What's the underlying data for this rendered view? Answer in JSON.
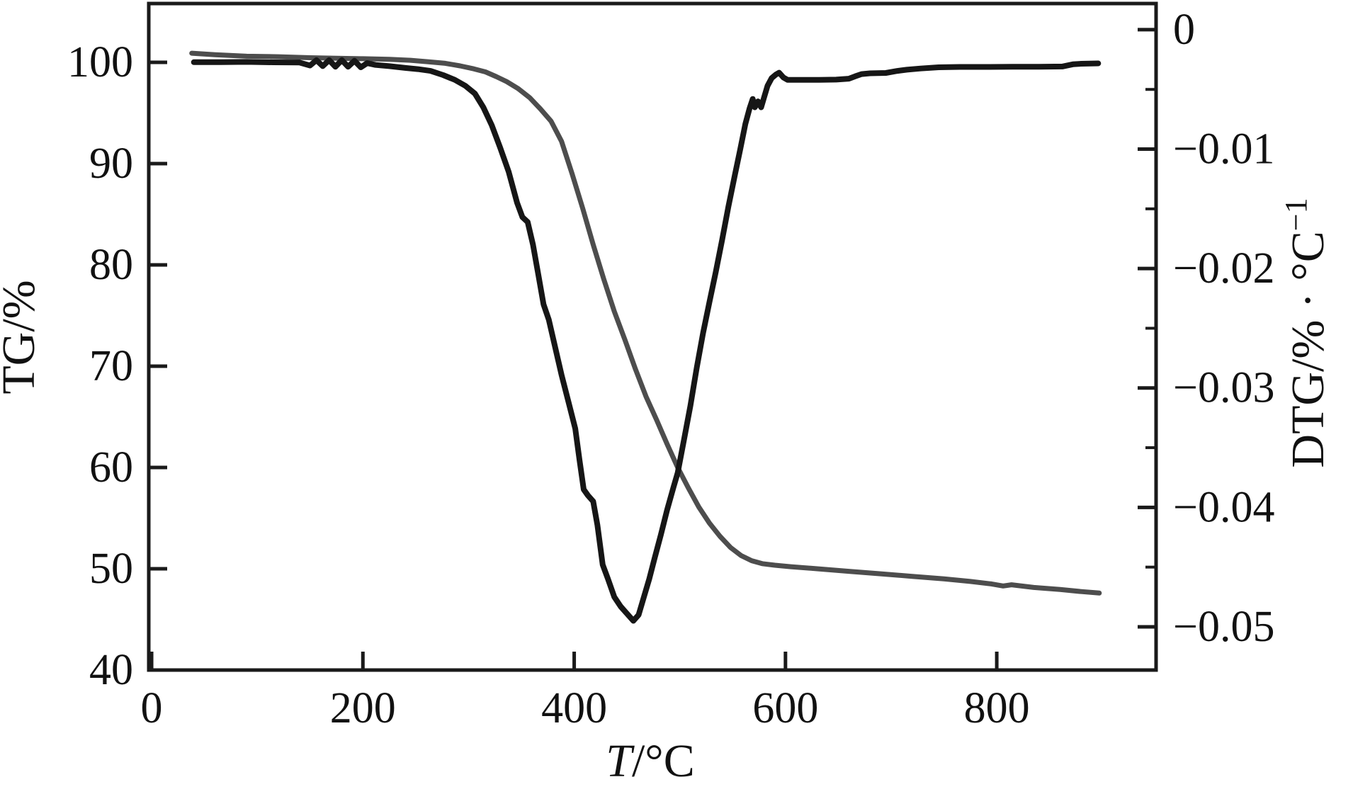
{
  "chart_data": {
    "type": "line",
    "title": "",
    "xlabel_var": "T",
    "xlabel_unit": "/°C",
    "axes": {
      "x": {
        "lim": [
          -2.7,
          950.8
        ],
        "ticks": [
          0,
          200,
          400,
          600,
          800
        ],
        "tick_labels": [
          "0",
          "200",
          "400",
          "600",
          "800"
        ]
      },
      "y_left": {
        "label": "TG/%",
        "lim": [
          40,
          105.8
        ],
        "ticks": [
          40,
          50,
          60,
          70,
          80,
          90,
          100
        ],
        "tick_labels": [
          "40",
          "50",
          "60",
          "70",
          "80",
          "90",
          "100"
        ]
      },
      "y_right": {
        "label_prefix": "DTG/% · °C",
        "label_sup": "−1",
        "lim": [
          -0.05362,
          0.00219
        ],
        "ticks": [
          0,
          -0.01,
          -0.02,
          -0.03,
          -0.04,
          -0.05
        ],
        "tick_labels": [
          "0",
          "−0.01",
          "−0.02",
          "−0.03",
          "−0.04",
          "−0.05"
        ],
        "minor_ticks": [
          -0.005,
          -0.015,
          -0.025,
          -0.035,
          -0.045
        ]
      }
    },
    "series": [
      {
        "name": "TG",
        "axis": "left",
        "color": "#4d4d4d",
        "width": 7,
        "points": [
          [
            38,
            100.9
          ],
          [
            60,
            100.75
          ],
          [
            90,
            100.6
          ],
          [
            120,
            100.55
          ],
          [
            150,
            100.45
          ],
          [
            175,
            100.4
          ],
          [
            200,
            100.35
          ],
          [
            225,
            100.3
          ],
          [
            245,
            100.2
          ],
          [
            262,
            100.05
          ],
          [
            278,
            99.9
          ],
          [
            292,
            99.65
          ],
          [
            305,
            99.35
          ],
          [
            316,
            99.05
          ],
          [
            326,
            98.6
          ],
          [
            336,
            98.1
          ],
          [
            347,
            97.4
          ],
          [
            358,
            96.5
          ],
          [
            368,
            95.4
          ],
          [
            378,
            94.2
          ],
          [
            388,
            92.2
          ],
          [
            398,
            89.0
          ],
          [
            408,
            85.6
          ],
          [
            418,
            82.0
          ],
          [
            428,
            78.6
          ],
          [
            438,
            75.4
          ],
          [
            448,
            72.6
          ],
          [
            458,
            69.7
          ],
          [
            468,
            67.0
          ],
          [
            478,
            64.7
          ],
          [
            488,
            62.3
          ],
          [
            498,
            60.0
          ],
          [
            508,
            58.0
          ],
          [
            518,
            56.1
          ],
          [
            528,
            54.5
          ],
          [
            538,
            53.2
          ],
          [
            548,
            52.1
          ],
          [
            558,
            51.3
          ],
          [
            568,
            50.8
          ],
          [
            578,
            50.5
          ],
          [
            590,
            50.35
          ],
          [
            605,
            50.2
          ],
          [
            630,
            50.0
          ],
          [
            660,
            49.75
          ],
          [
            690,
            49.5
          ],
          [
            720,
            49.25
          ],
          [
            750,
            49.0
          ],
          [
            775,
            48.75
          ],
          [
            795,
            48.5
          ],
          [
            806,
            48.3
          ],
          [
            814,
            48.42
          ],
          [
            835,
            48.15
          ],
          [
            860,
            47.95
          ],
          [
            880,
            47.75
          ],
          [
            897,
            47.6
          ]
        ]
      },
      {
        "name": "DTG",
        "axis": "right",
        "color": "#161616",
        "width": 8,
        "points": [
          [
            40,
            -0.00272
          ],
          [
            65,
            -0.00272
          ],
          [
            90,
            -0.0027
          ],
          [
            115,
            -0.00273
          ],
          [
            140,
            -0.00275
          ],
          [
            150,
            -0.003
          ],
          [
            156,
            -0.00255
          ],
          [
            162,
            -0.00305
          ],
          [
            168,
            -0.00255
          ],
          [
            174,
            -0.0031
          ],
          [
            180,
            -0.00255
          ],
          [
            186,
            -0.0031
          ],
          [
            192,
            -0.0026
          ],
          [
            198,
            -0.00315
          ],
          [
            204,
            -0.0028
          ],
          [
            212,
            -0.00295
          ],
          [
            225,
            -0.00305
          ],
          [
            240,
            -0.0032
          ],
          [
            252,
            -0.0033
          ],
          [
            264,
            -0.00345
          ],
          [
            276,
            -0.0038
          ],
          [
            287,
            -0.0042
          ],
          [
            297,
            -0.0047
          ],
          [
            306,
            -0.00535
          ],
          [
            314,
            -0.0065
          ],
          [
            322,
            -0.008
          ],
          [
            330,
            -0.0099
          ],
          [
            338,
            -0.0119
          ],
          [
            346,
            -0.0145
          ],
          [
            351,
            -0.0157
          ],
          [
            356,
            -0.0161
          ],
          [
            361,
            -0.018
          ],
          [
            366,
            -0.0205
          ],
          [
            371,
            -0.023
          ],
          [
            376,
            -0.0243
          ],
          [
            381,
            -0.0262
          ],
          [
            388,
            -0.0289
          ],
          [
            395,
            -0.0313
          ],
          [
            401,
            -0.0334
          ],
          [
            405,
            -0.036
          ],
          [
            409,
            -0.0385
          ],
          [
            413,
            -0.039
          ],
          [
            418,
            -0.0395
          ],
          [
            422,
            -0.0415
          ],
          [
            427,
            -0.0448
          ],
          [
            432,
            -0.046
          ],
          [
            438,
            -0.0475
          ],
          [
            444,
            -0.0483
          ],
          [
            450,
            -0.0489
          ],
          [
            456,
            -0.0495
          ],
          [
            461,
            -0.049
          ],
          [
            466,
            -0.0475
          ],
          [
            471,
            -0.046
          ],
          [
            476,
            -0.0443
          ],
          [
            482,
            -0.0423
          ],
          [
            488,
            -0.0402
          ],
          [
            494,
            -0.0383
          ],
          [
            498,
            -0.0371
          ],
          [
            504,
            -0.0343
          ],
          [
            510,
            -0.0315
          ],
          [
            516,
            -0.0283
          ],
          [
            522,
            -0.0254
          ],
          [
            528,
            -0.0228
          ],
          [
            534,
            -0.0203
          ],
          [
            540,
            -0.0176
          ],
          [
            546,
            -0.0148
          ],
          [
            552,
            -0.0122
          ],
          [
            557,
            -0.0101
          ],
          [
            562,
            -0.0079
          ],
          [
            566,
            -0.0066
          ],
          [
            569,
            -0.0058
          ],
          [
            571,
            -0.0065
          ],
          [
            574,
            -0.006
          ],
          [
            577,
            -0.0065
          ],
          [
            580,
            -0.0056
          ],
          [
            583,
            -0.0047
          ],
          [
            587,
            -0.00405
          ],
          [
            591,
            -0.00375
          ],
          [
            594,
            -0.0036
          ],
          [
            598,
            -0.004
          ],
          [
            602,
            -0.0042
          ],
          [
            615,
            -0.0042
          ],
          [
            632,
            -0.0042
          ],
          [
            648,
            -0.00418
          ],
          [
            660,
            -0.0041
          ],
          [
            666,
            -0.0039
          ],
          [
            672,
            -0.00372
          ],
          [
            680,
            -0.00365
          ],
          [
            695,
            -0.00362
          ],
          [
            706,
            -0.00345
          ],
          [
            715,
            -0.00335
          ],
          [
            728,
            -0.00325
          ],
          [
            745,
            -0.00315
          ],
          [
            765,
            -0.00312
          ],
          [
            790,
            -0.00312
          ],
          [
            815,
            -0.0031
          ],
          [
            840,
            -0.0031
          ],
          [
            862,
            -0.00308
          ],
          [
            872,
            -0.0029
          ],
          [
            880,
            -0.00285
          ],
          [
            896,
            -0.00282
          ]
        ]
      }
    ]
  }
}
